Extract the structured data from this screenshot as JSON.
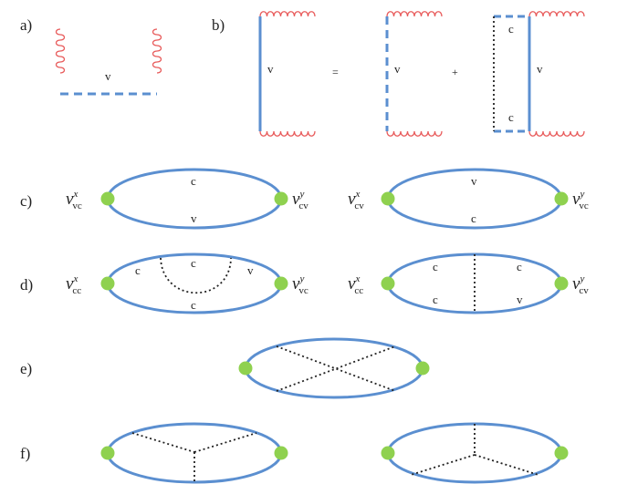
{
  "colors": {
    "fermion": "#5b8fd0",
    "gluon": "#e85a5a",
    "vertex": "#8fd14f",
    "interaction": "#222222"
  },
  "panels": {
    "a": "a)",
    "b": "b)",
    "c": "c)",
    "d": "d)",
    "e": "e)",
    "f": "f)"
  },
  "a": {
    "label": "v"
  },
  "b": {
    "lhs_label": "v",
    "equals": "=",
    "term1_label": "v",
    "plus": "+",
    "term2_top": "c",
    "term2_bottom": "c",
    "term2_right": "v"
  },
  "c": {
    "left": {
      "vl_base": "v",
      "vl_sup": "x",
      "vl_sub": "vc",
      "top": "c",
      "bottom": "v",
      "vr_base": "v",
      "vr_sup": "y",
      "vr_sub": "cv"
    },
    "right": {
      "vl_base": "v",
      "vl_sup": "x",
      "vl_sub": "cv",
      "top": "v",
      "bottom": "c",
      "vr_base": "v",
      "vr_sup": "y",
      "vr_sub": "vc"
    }
  },
  "d": {
    "left": {
      "vl_base": "v",
      "vl_sup": "x",
      "vl_sub": "cc",
      "tl": "c",
      "tc": "c",
      "tr": "v",
      "bottom": "c",
      "vr_base": "v",
      "vr_sup": "y",
      "vr_sub": "vc"
    },
    "right": {
      "vl_base": "v",
      "vl_sup": "x",
      "vl_sub": "cc",
      "tl": "c",
      "tr": "c",
      "bl": "c",
      "br": "v",
      "vr_base": "v",
      "vr_sup": "y",
      "vr_sub": "cv"
    }
  }
}
